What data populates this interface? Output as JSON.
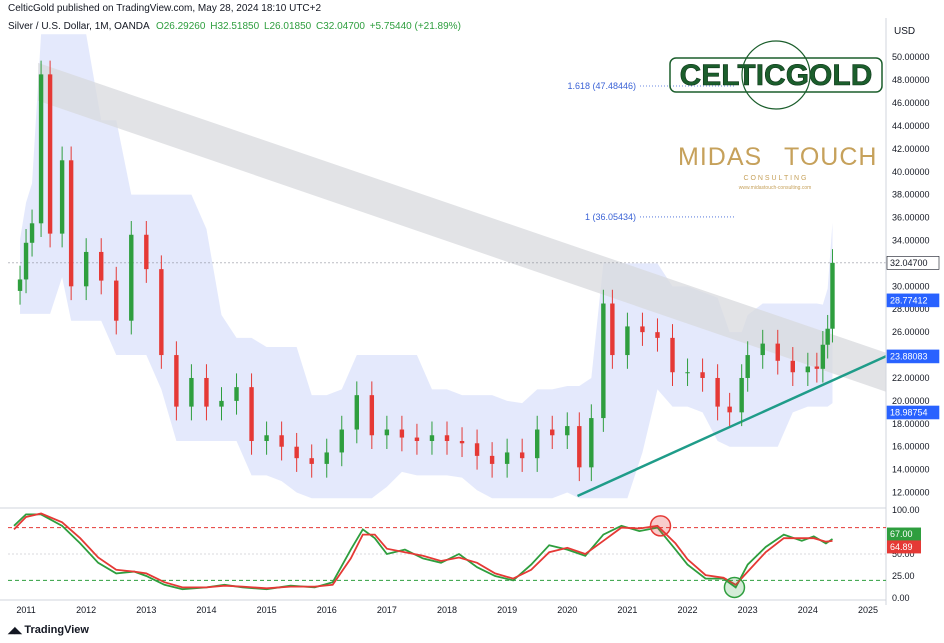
{
  "header": {
    "published": "CelticGold published on TradingView.com, May 28, 2024 18:10 UTC+2",
    "symbol": "Silver / U.S. Dollar, 1M, OANDA",
    "open": "O26.29260",
    "high": "H32.51850",
    "low": "L26.01850",
    "close": "C32.04700",
    "change": "+5.75440 (+21.89%)",
    "currency": "USD"
  },
  "branding": {
    "logo1": "CELTICGOLD",
    "logo2_a": "MIDAS",
    "logo2_b": "TOUCH",
    "logo2_sub": "C O N S U L T I N G",
    "logo2_url": "www.midastouch-consulting.com",
    "footer": "TradingView"
  },
  "colors": {
    "up": "#26a69a",
    "up_candle": "#2e9e3e",
    "down": "#e53935",
    "band": "#dfe5fb",
    "trendline": "#1f9c89",
    "channel": "#d8d9dd",
    "fib": "#3b63d6"
  },
  "chart_data": [
    {
      "type": "candlestick",
      "title": "Silver / U.S. Dollar, 1M, OANDA",
      "x_axis_labels": [
        "2011",
        "2012",
        "2013",
        "2014",
        "2015",
        "2016",
        "2017",
        "2018",
        "2019",
        "2020",
        "2021",
        "2022",
        "2023",
        "2024",
        "2025"
      ],
      "y_axis_ticks": [
        "12.00000",
        "14.00000",
        "16.00000",
        "18.00000",
        "20.00000",
        "22.00000",
        "24.00000",
        "26.00000",
        "28.00000",
        "30.00000",
        "32.00000",
        "34.00000",
        "36.00000",
        "38.00000",
        "40.00000",
        "42.00000",
        "44.00000",
        "46.00000",
        "48.00000",
        "50.00000"
      ],
      "ylim": [
        11,
        51.5
      ],
      "series_close_approx": [
        {
          "year": 2010.9,
          "close": 30.6
        },
        {
          "year": 2011.0,
          "close": 33.8
        },
        {
          "year": 2011.1,
          "close": 35.5
        },
        {
          "year": 2011.25,
          "close": 48.5
        },
        {
          "year": 2011.4,
          "close": 34.6
        },
        {
          "year": 2011.6,
          "close": 41.0
        },
        {
          "year": 2011.75,
          "close": 30.0
        },
        {
          "year": 2012.0,
          "close": 33.0
        },
        {
          "year": 2012.25,
          "close": 30.5
        },
        {
          "year": 2012.5,
          "close": 27.0
        },
        {
          "year": 2012.75,
          "close": 34.5
        },
        {
          "year": 2013.0,
          "close": 31.5
        },
        {
          "year": 2013.25,
          "close": 24.0
        },
        {
          "year": 2013.5,
          "close": 19.5
        },
        {
          "year": 2013.75,
          "close": 22.0
        },
        {
          "year": 2014.0,
          "close": 19.5
        },
        {
          "year": 2014.25,
          "close": 20.0
        },
        {
          "year": 2014.5,
          "close": 21.2
        },
        {
          "year": 2014.75,
          "close": 16.5
        },
        {
          "year": 2015.0,
          "close": 17.0
        },
        {
          "year": 2015.25,
          "close": 16.0
        },
        {
          "year": 2015.5,
          "close": 15.0
        },
        {
          "year": 2015.75,
          "close": 14.5
        },
        {
          "year": 2016.0,
          "close": 15.5
        },
        {
          "year": 2016.25,
          "close": 17.5
        },
        {
          "year": 2016.5,
          "close": 20.5
        },
        {
          "year": 2016.75,
          "close": 17.0
        },
        {
          "year": 2017.0,
          "close": 17.5
        },
        {
          "year": 2017.25,
          "close": 16.8
        },
        {
          "year": 2017.5,
          "close": 16.5
        },
        {
          "year": 2017.75,
          "close": 17.0
        },
        {
          "year": 2018.0,
          "close": 16.5
        },
        {
          "year": 2018.25,
          "close": 16.3
        },
        {
          "year": 2018.5,
          "close": 15.2
        },
        {
          "year": 2018.75,
          "close": 14.5
        },
        {
          "year": 2019.0,
          "close": 15.5
        },
        {
          "year": 2019.25,
          "close": 15.0
        },
        {
          "year": 2019.5,
          "close": 17.5
        },
        {
          "year": 2019.75,
          "close": 17.0
        },
        {
          "year": 2020.0,
          "close": 17.8
        },
        {
          "year": 2020.2,
          "close": 14.2
        },
        {
          "year": 2020.4,
          "close": 18.5
        },
        {
          "year": 2020.6,
          "close": 28.5
        },
        {
          "year": 2020.75,
          "close": 24.0
        },
        {
          "year": 2021.0,
          "close": 26.5
        },
        {
          "year": 2021.25,
          "close": 26.0
        },
        {
          "year": 2021.5,
          "close": 25.5
        },
        {
          "year": 2021.75,
          "close": 22.5
        },
        {
          "year": 2022.0,
          "close": 22.5
        },
        {
          "year": 2022.25,
          "close": 22.0
        },
        {
          "year": 2022.5,
          "close": 19.5
        },
        {
          "year": 2022.7,
          "close": 19.0
        },
        {
          "year": 2022.9,
          "close": 22.0
        },
        {
          "year": 2023.0,
          "close": 24.0
        },
        {
          "year": 2023.25,
          "close": 25.0
        },
        {
          "year": 2023.5,
          "close": 23.5
        },
        {
          "year": 2023.75,
          "close": 22.5
        },
        {
          "year": 2024.0,
          "close": 23.0
        },
        {
          "year": 2024.15,
          "close": 22.8
        },
        {
          "year": 2024.25,
          "close": 24.9
        },
        {
          "year": 2024.33,
          "close": 26.3
        },
        {
          "year": 2024.41,
          "close": 32.047
        }
      ],
      "price_labels": [
        {
          "text": "32.04700",
          "price": 32.047,
          "bg": "#ffffff",
          "fg": "#131722"
        },
        {
          "text": "28.77412",
          "price": 28.774,
          "bg": "#2962ff",
          "fg": "#ffffff"
        },
        {
          "text": "23.88083",
          "price": 23.881,
          "bg": "#2962ff",
          "fg": "#ffffff"
        },
        {
          "text": "18.98754",
          "price": 18.988,
          "bg": "#2962ff",
          "fg": "#ffffff"
        }
      ],
      "fib_levels": [
        {
          "text": "1.618 (47.48446)",
          "price": 47.484
        },
        {
          "text": "1 (36.05434)",
          "price": 36.054
        }
      ]
    },
    {
      "type": "line",
      "title": "",
      "y_axis_ticks": [
        "100.00",
        "75.00",
        "50.00",
        "25.00",
        "0.00"
      ],
      "ylim": [
        0,
        100
      ],
      "overbought": 80,
      "oversold": 20,
      "value_labels": [
        {
          "text": "67.00",
          "value": 67.0,
          "bg": "#2e9e3e"
        },
        {
          "text": "64.89",
          "value": 64.89,
          "bg": "#e53935"
        }
      ],
      "series": [
        {
          "name": "",
          "color": "#2e9e3e",
          "values": [
            [
              2010.8,
              82
            ],
            [
              2011.0,
              95
            ],
            [
              2011.25,
              95
            ],
            [
              2011.6,
              82
            ],
            [
              2011.9,
              62
            ],
            [
              2012.2,
              40
            ],
            [
              2012.5,
              28
            ],
            [
              2012.8,
              30
            ],
            [
              2013.0,
              25
            ],
            [
              2013.3,
              15
            ],
            [
              2013.6,
              10
            ],
            [
              2014.0,
              12
            ],
            [
              2014.3,
              15
            ],
            [
              2014.6,
              12
            ],
            [
              2015.0,
              10
            ],
            [
              2015.4,
              14
            ],
            [
              2015.8,
              12
            ],
            [
              2016.1,
              18
            ],
            [
              2016.4,
              55
            ],
            [
              2016.6,
              78
            ],
            [
              2016.8,
              68
            ],
            [
              2017.0,
              50
            ],
            [
              2017.3,
              55
            ],
            [
              2017.6,
              45
            ],
            [
              2017.9,
              40
            ],
            [
              2018.2,
              50
            ],
            [
              2018.5,
              35
            ],
            [
              2018.8,
              25
            ],
            [
              2019.1,
              20
            ],
            [
              2019.4,
              38
            ],
            [
              2019.7,
              60
            ],
            [
              2020.0,
              55
            ],
            [
              2020.3,
              48
            ],
            [
              2020.6,
              72
            ],
            [
              2020.9,
              82
            ],
            [
              2021.2,
              76
            ],
            [
              2021.5,
              80
            ],
            [
              2021.8,
              55
            ],
            [
              2022.0,
              38
            ],
            [
              2022.3,
              22
            ],
            [
              2022.6,
              22
            ],
            [
              2022.8,
              12
            ],
            [
              2023.0,
              38
            ],
            [
              2023.3,
              58
            ],
            [
              2023.6,
              72
            ],
            [
              2023.9,
              65
            ],
            [
              2024.1,
              70
            ],
            [
              2024.3,
              62
            ],
            [
              2024.41,
              67
            ]
          ]
        },
        {
          "name": "",
          "color": "#e53935",
          "values": [
            [
              2010.8,
              78
            ],
            [
              2011.0,
              92
            ],
            [
              2011.25,
              96
            ],
            [
              2011.6,
              86
            ],
            [
              2011.9,
              68
            ],
            [
              2012.2,
              46
            ],
            [
              2012.5,
              32
            ],
            [
              2012.8,
              30
            ],
            [
              2013.0,
              28
            ],
            [
              2013.3,
              18
            ],
            [
              2013.6,
              12
            ],
            [
              2014.0,
              12
            ],
            [
              2014.3,
              14
            ],
            [
              2014.6,
              13
            ],
            [
              2015.0,
              11
            ],
            [
              2015.4,
              13
            ],
            [
              2015.8,
              13
            ],
            [
              2016.1,
              15
            ],
            [
              2016.4,
              45
            ],
            [
              2016.6,
              72
            ],
            [
              2016.8,
              72
            ],
            [
              2017.0,
              56
            ],
            [
              2017.3,
              52
            ],
            [
              2017.6,
              48
            ],
            [
              2017.9,
              42
            ],
            [
              2018.2,
              46
            ],
            [
              2018.5,
              40
            ],
            [
              2018.8,
              28
            ],
            [
              2019.1,
              22
            ],
            [
              2019.4,
              32
            ],
            [
              2019.7,
              52
            ],
            [
              2020.0,
              57
            ],
            [
              2020.3,
              50
            ],
            [
              2020.6,
              65
            ],
            [
              2020.9,
              80
            ],
            [
              2021.2,
              79
            ],
            [
              2021.5,
              82
            ],
            [
              2021.8,
              62
            ],
            [
              2022.0,
              44
            ],
            [
              2022.3,
              26
            ],
            [
              2022.6,
              23
            ],
            [
              2022.8,
              15
            ],
            [
              2023.0,
              30
            ],
            [
              2023.3,
              52
            ],
            [
              2023.6,
              68
            ],
            [
              2023.9,
              68
            ],
            [
              2024.1,
              68
            ],
            [
              2024.3,
              64
            ],
            [
              2024.41,
              64.89
            ]
          ]
        }
      ]
    }
  ]
}
